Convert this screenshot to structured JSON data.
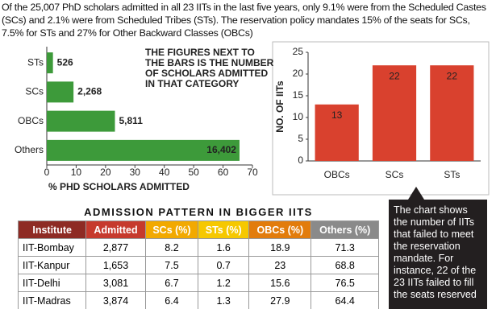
{
  "intro": "Of the 25,007 PhD scholars admitted in all 23 IITs in the last five years, only 9.1% were from the Scheduled Castes (SCs) and 2.1% were from Scheduled Tribes (STs). The reservation policy mandates 15% of the seats for SCs, 7.5% for STs and 27% for Other Backward Classes (OBCs)",
  "chart_data": [
    {
      "type": "hbar",
      "categories": [
        "STs",
        "SCs",
        "OBCs",
        "Others"
      ],
      "values": [
        2.1,
        9.1,
        23.2,
        65.6
      ],
      "counts": [
        526,
        {
          "value": 2268,
          "label": "2,268"
        },
        {
          "value": 5811,
          "label": "5,811"
        },
        {
          "value": 16402,
          "label": "16,402"
        }
      ],
      "color": "#3d9a3a",
      "xlabel": "% PHD SCHOLARS ADMITTED",
      "xlim": [
        0,
        70
      ],
      "xticks": [
        0,
        10,
        20,
        30,
        40,
        50,
        60,
        70
      ],
      "grid": false,
      "annotation": "THE FIGURES NEXT TO THE BARS IS THE NUMBER OF SCHOLARS ADMITTED IN THAT CATEGORY"
    },
    {
      "type": "bar",
      "categories": [
        "OBCs",
        "SCs",
        "STs"
      ],
      "values": [
        13,
        22,
        22
      ],
      "color": "#d9412e",
      "ylabel": "NO. OF IITs",
      "ylim": [
        0,
        25
      ],
      "yticks": [
        0,
        5,
        10,
        15,
        20,
        25
      ],
      "grid": false
    }
  ],
  "note": "The chart shows the number of IITs that failed to meet the reservation mandate. For instance, 22 of the 23 IITs failed to fill the seats reserved",
  "table": {
    "title": "ADMISSION PATTERN IN BIGGER IITS",
    "header": [
      "Institute",
      "Admitted",
      "SCs (%)",
      "STs (%)",
      "OBCs (%)",
      "Others (%)"
    ],
    "rows": [
      [
        "IIT-Bombay",
        "2,877",
        "8.2",
        "1.6",
        "18.9",
        "71.3"
      ],
      [
        "IIT-Kanpur",
        "1,653",
        "7.5",
        "0.7",
        "23",
        "68.8"
      ],
      [
        "IIT-Delhi",
        "3,081",
        "6.7",
        "1.2",
        "15.6",
        "76.5"
      ],
      [
        "IIT-Madras",
        "3,874",
        "6.4",
        "1.3",
        "27.9",
        "64.4"
      ]
    ]
  }
}
